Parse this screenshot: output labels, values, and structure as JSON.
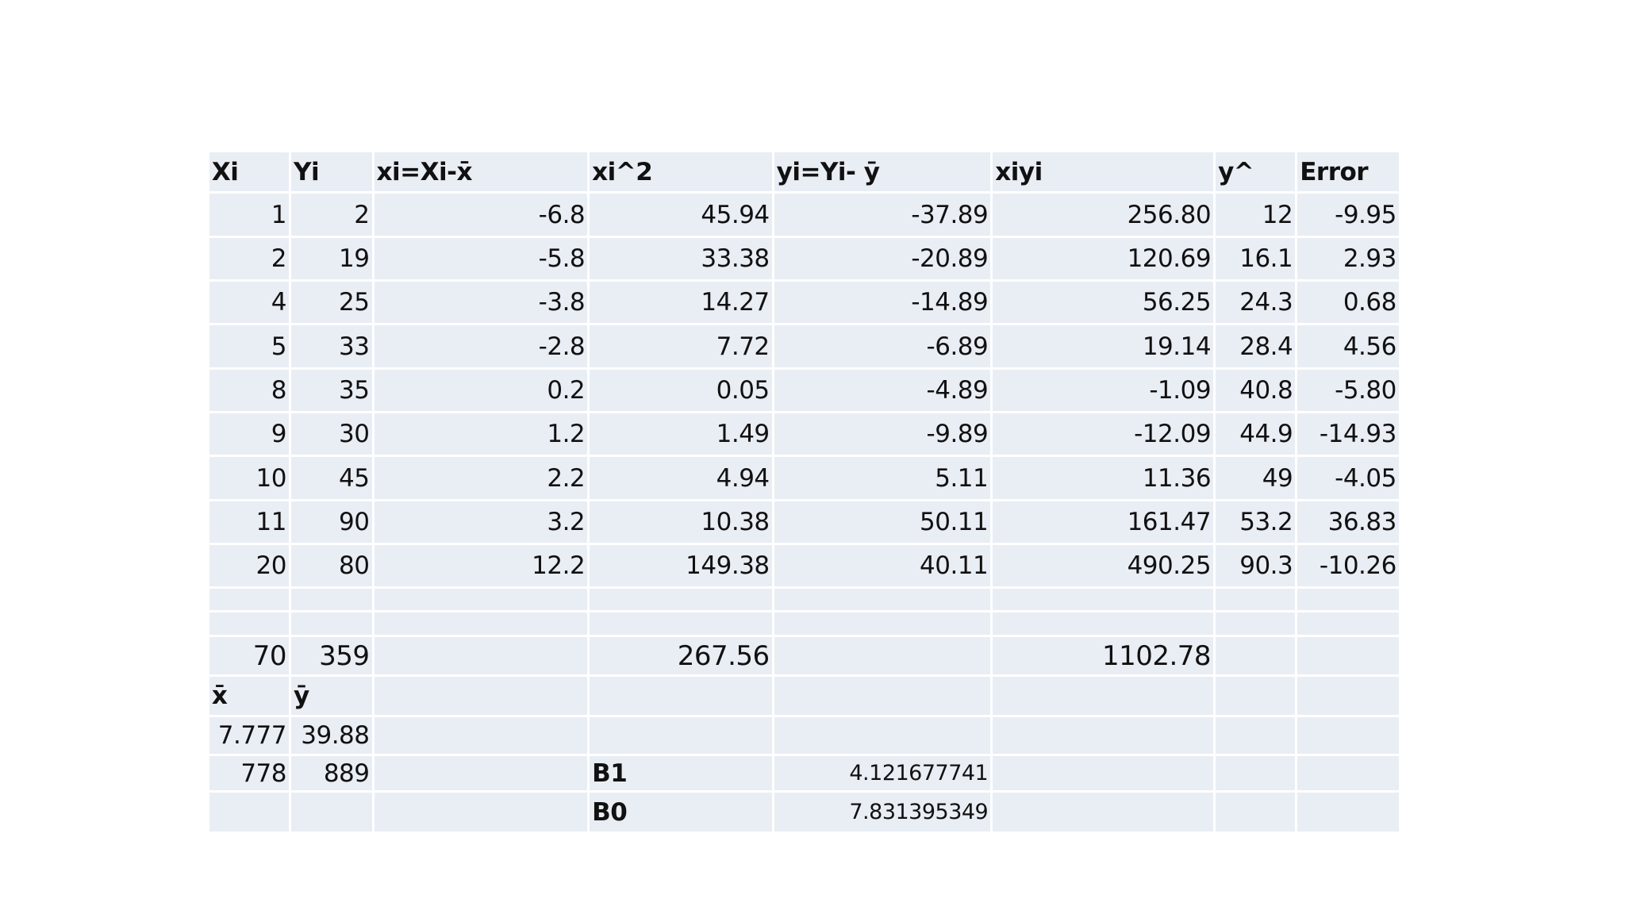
{
  "table": {
    "rows": [
      [
        "Xi",
        "Yi",
        "xi=Xi-x̄",
        "xi^2",
        "yi=Yi- ȳ",
        "xiyi",
        "y^",
        "Error"
      ],
      [
        "1",
        "2",
        "-6.8",
        "45.94",
        "-37.89",
        "256.80",
        "12",
        "-9.95"
      ],
      [
        "2",
        "19",
        "-5.8",
        "33.38",
        "-20.89",
        "120.69",
        "16.1",
        "2.93"
      ],
      [
        "4",
        "25",
        "-3.8",
        "14.27",
        "-14.89",
        "56.25",
        "24.3",
        "0.68"
      ],
      [
        "5",
        "33",
        "-2.8",
        "7.72",
        "-6.89",
        "19.14",
        "28.4",
        "4.56"
      ],
      [
        "8",
        "35",
        "0.2",
        "0.05",
        "-4.89",
        "-1.09",
        "40.8",
        "-5.80"
      ],
      [
        "9",
        "30",
        "1.2",
        "1.49",
        "-9.89",
        "-12.09",
        "44.9",
        "-14.93"
      ],
      [
        "10",
        "45",
        "2.2",
        "4.94",
        "5.11",
        "11.36",
        "49",
        "-4.05"
      ],
      [
        "11",
        "90",
        "3.2",
        "10.38",
        "50.11",
        "161.47",
        "53.2",
        "36.83"
      ],
      [
        "20",
        "80",
        "12.2",
        "149.38",
        "40.11",
        "490.25",
        "90.3",
        "-10.26"
      ],
      [
        null,
        null,
        null,
        null,
        null,
        null,
        null,
        null
      ],
      [
        null,
        null,
        null,
        null,
        null,
        null,
        null,
        null
      ],
      [
        "70",
        "359",
        null,
        "267.56",
        null,
        "1102.78",
        null,
        null
      ],
      [
        "x̄",
        "ȳ",
        null,
        null,
        null,
        null,
        null,
        null
      ],
      [
        "7.777",
        "39.88",
        null,
        null,
        null,
        null,
        null,
        null
      ],
      [
        "778",
        "889",
        null,
        "B1",
        "4.121677741",
        null,
        null,
        null
      ],
      [
        null,
        null,
        null,
        "B0",
        "7.831395349",
        null,
        null,
        null
      ]
    ]
  }
}
